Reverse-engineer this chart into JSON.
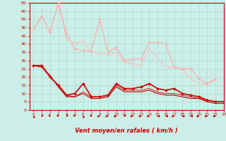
{
  "xlabel": "Vent moyen/en rafales ( km/h )",
  "xlim": [
    -0.5,
    23
  ],
  "ylim": [
    0,
    65
  ],
  "yticks": [
    0,
    5,
    10,
    15,
    20,
    25,
    30,
    35,
    40,
    45,
    50,
    55,
    60,
    65
  ],
  "xticks": [
    0,
    1,
    2,
    3,
    4,
    5,
    6,
    7,
    8,
    9,
    10,
    11,
    12,
    13,
    14,
    15,
    16,
    17,
    18,
    19,
    20,
    21,
    22,
    23
  ],
  "background_color": "#cceee8",
  "grid_color": "#aaddcc",
  "series": [
    {
      "x": [
        0,
        1,
        2,
        3,
        4,
        5,
        6,
        7,
        8,
        9,
        10,
        11,
        12,
        13,
        14,
        15,
        16,
        17,
        18,
        19,
        20,
        21,
        22
      ],
      "y": [
        49,
        57,
        47,
        65,
        46,
        37,
        36,
        36,
        55,
        35,
        38,
        30,
        31,
        31,
        41,
        41,
        40,
        26,
        25,
        25,
        19,
        16,
        19
      ],
      "color": "#ffaaaa",
      "lw": 0.8,
      "marker": "D",
      "ms": 1.5,
      "zorder": 3
    },
    {
      "x": [
        0,
        1,
        2,
        3,
        4,
        5,
        6,
        7,
        8,
        9,
        10,
        11,
        12,
        13,
        14,
        15,
        16,
        17,
        18,
        19,
        20,
        21,
        22
      ],
      "y": [
        49,
        57,
        47,
        65,
        43,
        40,
        42,
        35,
        35,
        33,
        35,
        29,
        28,
        27,
        37,
        32,
        26,
        26,
        25,
        19,
        16,
        16,
        18
      ],
      "color": "#ffbbbb",
      "lw": 0.8,
      "marker": null,
      "ms": 0,
      "zorder": 2
    },
    {
      "x": [
        0,
        1,
        2,
        3,
        4,
        5,
        6,
        7,
        8,
        9,
        10,
        11,
        12,
        13,
        14,
        15,
        16,
        17,
        18,
        19,
        20,
        21,
        22,
        23
      ],
      "y": [
        27,
        27,
        20,
        15,
        9,
        10,
        16,
        8,
        8,
        9,
        16,
        13,
        13,
        14,
        16,
        13,
        12,
        13,
        10,
        9,
        8,
        6,
        5,
        5
      ],
      "color": "#cc0000",
      "lw": 1.2,
      "marker": "D",
      "ms": 2.0,
      "zorder": 5
    },
    {
      "x": [
        0,
        1,
        2,
        3,
        4,
        5,
        6,
        7,
        8,
        9,
        10,
        11,
        12,
        13,
        14,
        15,
        16,
        17,
        18,
        19,
        20,
        21,
        22,
        23
      ],
      "y": [
        27,
        26,
        20,
        15,
        9,
        8,
        11,
        8,
        8,
        9,
        15,
        12,
        12,
        12,
        13,
        11,
        10,
        10,
        9,
        8,
        7,
        6,
        5,
        5
      ],
      "color": "#dd3333",
      "lw": 0.8,
      "marker": null,
      "ms": 0,
      "zorder": 4
    },
    {
      "x": [
        0,
        1,
        2,
        3,
        4,
        5,
        6,
        7,
        8,
        9,
        10,
        11,
        12,
        13,
        14,
        15,
        16,
        17,
        18,
        19,
        20,
        21,
        22,
        23
      ],
      "y": [
        27,
        26,
        21,
        14,
        8,
        8,
        10,
        7,
        7,
        8,
        14,
        11,
        11,
        11,
        12,
        10,
        9,
        9,
        8,
        7,
        7,
        5,
        4,
        4
      ],
      "color": "#bb0000",
      "lw": 0.8,
      "marker": null,
      "ms": 0,
      "zorder": 4
    }
  ],
  "wind_directions": [
    225,
    315,
    45,
    45,
    315,
    45,
    225,
    45,
    90,
    90,
    90,
    315,
    90,
    90,
    90,
    270,
    270,
    90,
    270,
    270,
    90,
    90,
    90,
    90
  ]
}
